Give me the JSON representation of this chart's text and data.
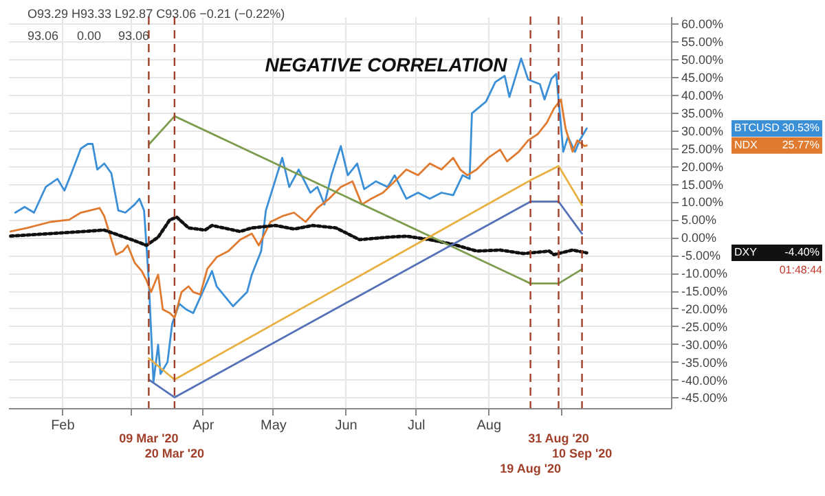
{
  "chart_data": {
    "type": "line",
    "title": "NEGATIVE CORRELATION",
    "annotations": [
      "O93.29 H93.33 L92.87 C93.06 −0.21 (−0.22%)",
      "93.06",
      "0.00",
      "93.06",
      "01:48:44",
      "30.53%",
      "25.77%",
      "-4.40%"
    ],
    "xlim": [
      "2020-01-09",
      "2020-10-18"
    ],
    "xticks": [
      {
        "value": "2020-02-01",
        "label": "Feb"
      },
      {
        "value": "2020-03-01",
        "label": null
      },
      {
        "value": "2020-04-01",
        "label": "Apr"
      },
      {
        "value": "2020-05-01",
        "label": "May"
      },
      {
        "value": "2020-06-01",
        "label": "Jun"
      },
      {
        "value": "2020-07-01",
        "label": "Jul"
      },
      {
        "value": "2020-08-01",
        "label": "Aug"
      },
      {
        "value": "2020-09-01",
        "label": null
      }
    ],
    "ylim": [
      -48,
      62
    ],
    "yticks": [
      {
        "value": 60,
        "label": "60.00%"
      },
      {
        "value": 55,
        "label": "55.00%"
      },
      {
        "value": 50,
        "label": "50.00%"
      },
      {
        "value": 45,
        "label": "45.00%"
      },
      {
        "value": 40,
        "label": "40.00%"
      },
      {
        "value": 35,
        "label": "35.00%"
      },
      {
        "value": 30,
        "label": "30.00%"
      },
      {
        "value": 25,
        "label": "25.00%"
      },
      {
        "value": 20,
        "label": "20.00%"
      },
      {
        "value": 15,
        "label": "15.00%"
      },
      {
        "value": 10,
        "label": "10.00%"
      },
      {
        "value": 5,
        "label": "5.00%"
      },
      {
        "value": 0,
        "label": "0.00%"
      },
      {
        "value": -5,
        "label": "-5.00%"
      },
      {
        "value": -10,
        "label": "-10.00%"
      },
      {
        "value": -15,
        "label": "-15.00%"
      },
      {
        "value": -20,
        "label": "-20.00%"
      },
      {
        "value": -25,
        "label": "-25.00%"
      },
      {
        "value": -30,
        "label": "-30.00%"
      },
      {
        "value": -35,
        "label": "-35.00%"
      },
      {
        "value": -40,
        "label": "-40.00%"
      },
      {
        "value": -45,
        "label": "-45.00%"
      }
    ],
    "grid": true,
    "ref_lines": [
      {
        "axis": "x",
        "value": "2020-03-09",
        "label": "09 Mar '20",
        "color": "#a0402a",
        "line_style": "dashed"
      },
      {
        "axis": "x",
        "value": "2020-03-20",
        "label": "20 Mar '20",
        "color": "#a0402a",
        "line_style": "dashed"
      },
      {
        "axis": "x",
        "value": "2020-08-19",
        "label": "19 Aug '20",
        "color": "#a0402a",
        "line_style": "dashed"
      },
      {
        "axis": "x",
        "value": "2020-08-31",
        "label": "31 Aug '20",
        "color": "#a0402a",
        "line_style": "dashed"
      },
      {
        "axis": "x",
        "value": "2020-09-10",
        "label": "10 Sep '20",
        "color": "#a0402a",
        "line_style": "dashed"
      }
    ],
    "series": [
      {
        "name": "BTCUSD",
        "color": "#3a8fd6",
        "x": [
          "2020-01-12",
          "2020-01-16",
          "2020-01-20",
          "2020-01-25",
          "2020-01-30",
          "2020-02-02",
          "2020-02-05",
          "2020-02-09",
          "2020-02-12",
          "2020-02-14",
          "2020-02-16",
          "2020-02-19",
          "2020-02-22",
          "2020-02-25",
          "2020-02-28",
          "2020-03-03",
          "2020-03-05",
          "2020-03-07",
          "2020-03-09",
          "2020-03-11",
          "2020-03-13",
          "2020-03-14",
          "2020-03-17",
          "2020-03-19",
          "2020-03-22",
          "2020-03-25",
          "2020-03-28",
          "2020-04-01",
          "2020-04-05",
          "2020-04-07",
          "2020-04-14",
          "2020-04-20",
          "2020-04-22",
          "2020-04-26",
          "2020-04-28",
          "2020-05-05",
          "2020-05-08",
          "2020-05-12",
          "2020-05-17",
          "2020-05-20",
          "2020-05-23",
          "2020-05-26",
          "2020-05-30",
          "2020-06-02",
          "2020-06-06",
          "2020-06-09",
          "2020-06-14",
          "2020-06-19",
          "2020-06-22",
          "2020-06-27",
          "2020-07-02",
          "2020-07-07",
          "2020-07-12",
          "2020-07-17",
          "2020-07-21",
          "2020-07-24",
          "2020-07-25",
          "2020-07-31",
          "2020-08-04",
          "2020-08-08",
          "2020-08-10",
          "2020-08-15",
          "2020-08-18",
          "2020-08-23",
          "2020-08-25",
          "2020-08-28",
          "2020-08-30",
          "2020-09-02",
          "2020-09-04",
          "2020-09-07",
          "2020-09-09",
          "2020-09-12"
        ],
        "values": [
          6.9,
          8.5,
          6.9,
          14.1,
          16.4,
          13.1,
          18.0,
          24.9,
          26.2,
          26.2,
          19.0,
          20.7,
          18.0,
          7.5,
          6.9,
          9.2,
          10.8,
          7.5,
          -12.1,
          -40.7,
          -30.2,
          -38.4,
          -35.1,
          -24.3,
          -18.7,
          -20.3,
          -21.3,
          -15.4,
          -9.5,
          -13.8,
          -19.4,
          -15.4,
          -10.5,
          -3.9,
          7.5,
          22.3,
          14.1,
          19.0,
          12.5,
          14.1,
          9.2,
          17.4,
          25.6,
          17.4,
          20.7,
          13.5,
          15.7,
          14.1,
          17.4,
          10.8,
          12.5,
          10.8,
          12.5,
          11.8,
          17.4,
          16.4,
          34.8,
          38.1,
          43.6,
          45.3,
          39.4,
          50.2,
          44.3,
          43.0,
          38.7,
          44.6,
          45.9,
          24.0,
          28.2,
          24.0,
          27.2,
          30.53
        ]
      },
      {
        "name": "NDX",
        "color": "#e07a2e",
        "x": [
          "2020-01-10",
          "2020-01-17",
          "2020-01-27",
          "2020-02-04",
          "2020-02-09",
          "2020-02-17",
          "2020-02-19",
          "2020-02-24",
          "2020-02-27",
          "2020-02-29",
          "2020-03-03",
          "2020-03-06",
          "2020-03-08",
          "2020-03-10",
          "2020-03-13",
          "2020-03-15",
          "2020-03-18",
          "2020-03-20",
          "2020-03-23",
          "2020-03-26",
          "2020-03-28",
          "2020-03-31",
          "2020-04-03",
          "2020-04-07",
          "2020-04-12",
          "2020-04-17",
          "2020-04-22",
          "2020-04-25",
          "2020-04-30",
          "2020-05-05",
          "2020-05-10",
          "2020-05-15",
          "2020-05-20",
          "2020-05-25",
          "2020-05-30",
          "2020-06-04",
          "2020-06-08",
          "2020-06-12",
          "2020-06-17",
          "2020-06-22",
          "2020-06-27",
          "2020-07-02",
          "2020-07-07",
          "2020-07-12",
          "2020-07-17",
          "2020-07-20",
          "2020-07-23",
          "2020-07-27",
          "2020-08-01",
          "2020-08-06",
          "2020-08-09",
          "2020-08-14",
          "2020-08-18",
          "2020-08-22",
          "2020-08-26",
          "2020-08-29",
          "2020-09-01",
          "2020-09-03",
          "2020-09-06",
          "2020-09-08",
          "2020-09-11",
          "2020-09-12"
        ],
        "values": [
          1.6,
          2.6,
          4.3,
          4.9,
          6.9,
          8.2,
          5.9,
          -4.9,
          -3.9,
          -2.3,
          -7.2,
          -9.5,
          -12.1,
          -15.4,
          -10.5,
          -20.3,
          -21.3,
          -22.6,
          -15.4,
          -13.8,
          -15.4,
          -16.1,
          -8.9,
          -5.6,
          -3.9,
          -0.7,
          1.0,
          -2.3,
          4.3,
          5.9,
          6.9,
          4.3,
          8.2,
          10.8,
          14.1,
          15.7,
          9.2,
          10.8,
          12.5,
          15.7,
          19.0,
          17.4,
          20.7,
          19.0,
          22.3,
          19.0,
          17.4,
          19.0,
          22.3,
          24.6,
          21.3,
          24.0,
          27.2,
          28.9,
          32.2,
          36.1,
          38.7,
          30.5,
          24.0,
          27.2,
          25.6,
          25.77
        ]
      },
      {
        "name": "DXY",
        "color": "#111111",
        "line_style": "dotted",
        "x": [
          "2020-01-10",
          "2020-01-27",
          "2020-02-19",
          "2020-03-03",
          "2020-03-08",
          "2020-03-13",
          "2020-03-18",
          "2020-03-21",
          "2020-03-26",
          "2020-04-02",
          "2020-04-05",
          "2020-04-17",
          "2020-04-22",
          "2020-05-02",
          "2020-05-10",
          "2020-05-18",
          "2020-05-28",
          "2020-06-07",
          "2020-06-19",
          "2020-06-27",
          "2020-07-07",
          "2020-07-17",
          "2020-07-27",
          "2020-08-06",
          "2020-08-16",
          "2020-08-27",
          "2020-08-29",
          "2020-09-06",
          "2020-09-12"
        ],
        "values": [
          0.3,
          1.0,
          2.0,
          -1.0,
          -2.3,
          0.0,
          4.9,
          5.6,
          2.6,
          2.0,
          3.3,
          1.6,
          2.6,
          3.3,
          2.3,
          3.3,
          2.6,
          -0.7,
          0.0,
          0.3,
          -0.7,
          -2.0,
          -3.9,
          -3.6,
          -4.6,
          -3.9,
          -4.9,
          -3.6,
          -4.4
        ]
      },
      {
        "color": "#7d9c4e",
        "x": [
          "2020-03-09",
          "2020-03-20",
          "2020-08-19",
          "2020-08-31",
          "2020-09-10"
        ],
        "values": [
          26,
          34,
          -13,
          -13,
          -9
        ]
      },
      {
        "color": "#e8b040",
        "x": [
          "2020-03-09",
          "2020-03-20",
          "2020-08-19",
          "2020-08-31",
          "2020-09-10"
        ],
        "values": [
          -34,
          -40,
          16,
          20,
          9
        ]
      },
      {
        "color": "#5572b8",
        "x": [
          "2020-03-09",
          "2020-03-20",
          "2020-08-19",
          "2020-08-31",
          "2020-09-10"
        ],
        "values": [
          -40,
          -45,
          10,
          10,
          1
        ]
      }
    ]
  }
}
